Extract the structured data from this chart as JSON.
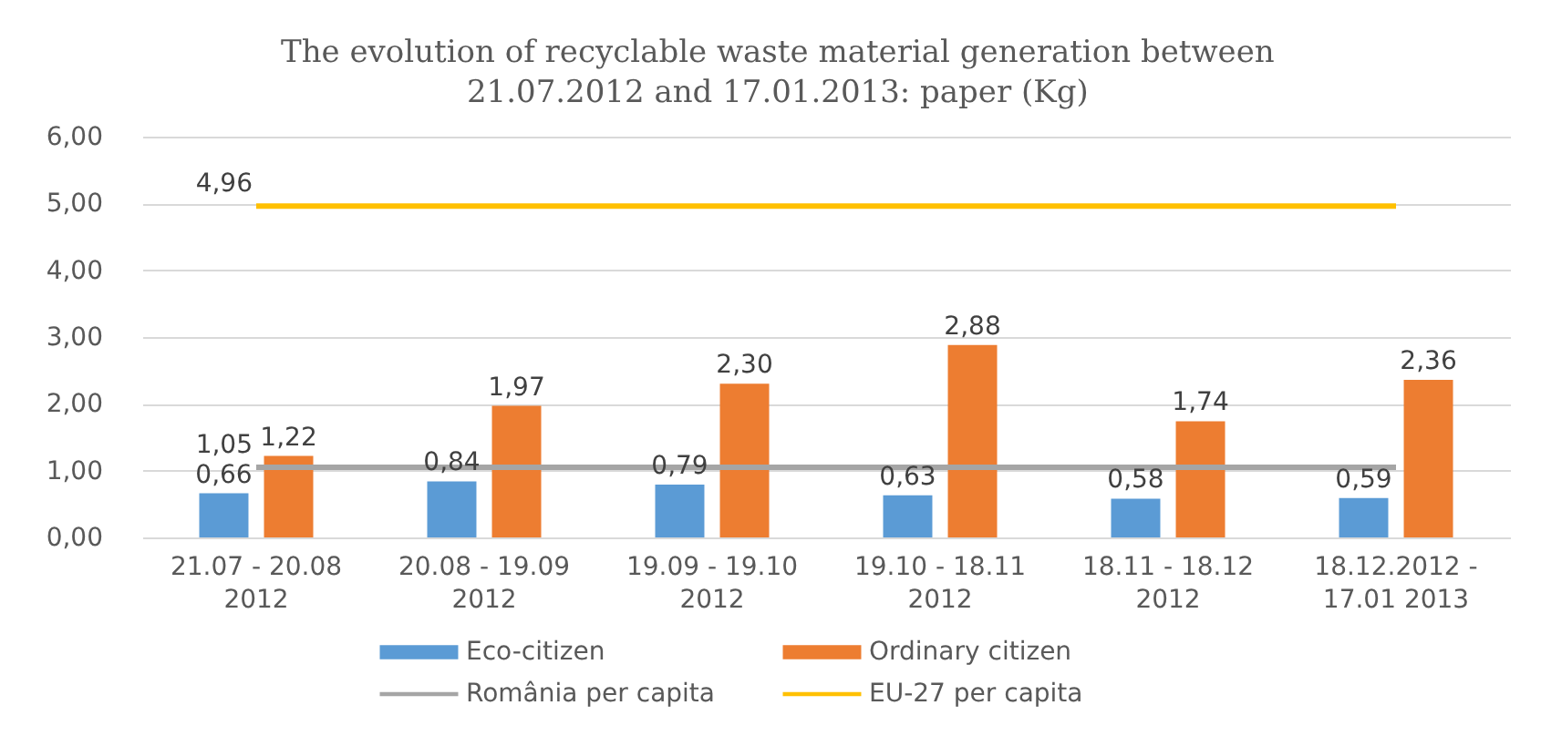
{
  "chart_data": {
    "type": "bar",
    "title": "The evolution of recyclable waste material generation between\n21.07.2012 and 17.01.2013: paper (Kg)",
    "categories": [
      "21.07 - 20.08\n2012",
      "20.08 - 19.09\n2012",
      "19.09 - 19.10\n2012",
      "19.10 - 18.11\n2012",
      "18.11 - 18.12\n2012",
      "18.12.2012 -\n17.01 2013"
    ],
    "series": [
      {
        "name": "Eco-citizen",
        "type": "bar",
        "color": "#5b9bd5",
        "values": [
          0.66,
          0.84,
          0.79,
          0.63,
          0.58,
          0.59
        ],
        "value_labels": [
          "0,66",
          "0,84",
          "0,79",
          "0,63",
          "0,58",
          "0,59"
        ]
      },
      {
        "name": "Ordinary citizen",
        "type": "bar",
        "color": "#ed7d31",
        "values": [
          1.22,
          1.97,
          2.3,
          2.88,
          1.74,
          2.36
        ],
        "value_labels": [
          "1,22",
          "1,97",
          "2,30",
          "2,88",
          "1,74",
          "2,36"
        ]
      },
      {
        "name": "România per capita",
        "type": "line",
        "color": "#a5a5a5",
        "values": [
          1.05,
          1.05,
          1.05,
          1.05,
          1.05,
          1.05
        ],
        "value_labels": [
          "1,05",
          null,
          null,
          null,
          null,
          null
        ]
      },
      {
        "name": "EU-27 per capita",
        "type": "line",
        "color": "#ffc000",
        "values": [
          4.96,
          4.96,
          4.96,
          4.96,
          4.96,
          4.96
        ],
        "value_labels": [
          "4,96",
          null,
          null,
          null,
          null,
          null
        ]
      }
    ],
    "ylim": [
      0,
      6
    ],
    "yticks": [
      {
        "value": 0,
        "label": "0,00"
      },
      {
        "value": 1,
        "label": "1,00"
      },
      {
        "value": 2,
        "label": "2,00"
      },
      {
        "value": 3,
        "label": "3,00"
      },
      {
        "value": 4,
        "label": "4,00"
      },
      {
        "value": 5,
        "label": "5,00"
      },
      {
        "value": 6,
        "label": "6,00"
      }
    ],
    "grid": "y",
    "legend": "bottom"
  }
}
